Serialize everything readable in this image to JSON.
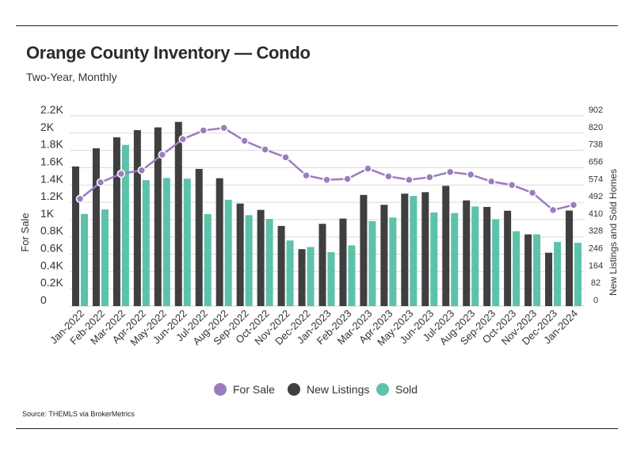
{
  "header": {
    "title": "Orange County Inventory — Condo",
    "subtitle": "Two-Year, Monthly"
  },
  "footer": {
    "source": "Source:  THEMLS via BrokerMetrics"
  },
  "colors": {
    "for_sale": "#9b7dbf",
    "new_listings": "#3f3f3f",
    "sold": "#5cc2aa",
    "grid": "#d9d9d9"
  },
  "chart_data": {
    "type": "bar",
    "title": "Orange County Inventory — Condo",
    "subtitle": "Two-Year, Monthly",
    "ylabel_left": "For Sale",
    "ylabel_right": "New Listings and Sold Homes",
    "y_left_ticks": [
      "0",
      "0.2K",
      "0.4K",
      "0.6K",
      "0.8K",
      "1K",
      "1.2K",
      "1.4K",
      "1.6K",
      "1.8K",
      "2K",
      "2.2K"
    ],
    "y_left_range": [
      0,
      2200
    ],
    "y_right_ticks": [
      "0",
      "82",
      "164",
      "246",
      "328",
      "410",
      "492",
      "574",
      "656",
      "738",
      "820",
      "902"
    ],
    "y_right_range": [
      0,
      902
    ],
    "legend_position": "bottom",
    "categories": [
      "Jan-2022",
      "Feb-2022",
      "Mar-2022",
      "Apr-2022",
      "May-2022",
      "Jun-2022",
      "Jul-2022",
      "Aug-2022",
      "Sep-2022",
      "Oct-2022",
      "Nov-2022",
      "Dec-2022",
      "Jan-2023",
      "Feb-2023",
      "Mar-2023",
      "Apr-2023",
      "May-2023",
      "Jun-2023",
      "Jul-2023",
      "Aug-2023",
      "Sep-2023",
      "Oct-2023",
      "Nov-2023",
      "Dec-2023",
      "Jan-2024"
    ],
    "series": [
      {
        "name": "For Sale",
        "type": "line",
        "axis": "left",
        "values": [
          1240,
          1430,
          1530,
          1570,
          1750,
          1930,
          2030,
          2060,
          1910,
          1810,
          1720,
          1510,
          1460,
          1470,
          1590,
          1500,
          1460,
          1490,
          1550,
          1520,
          1440,
          1400,
          1310,
          1110,
          1170
        ]
      },
      {
        "name": "New Listings",
        "type": "bar",
        "axis": "right",
        "values": [
          662,
          748,
          800,
          834,
          847,
          873,
          650,
          606,
          486,
          456,
          380,
          270,
          390,
          415,
          527,
          480,
          533,
          540,
          570,
          501,
          470,
          452,
          340,
          253,
          453
        ]
      },
      {
        "name": "Sold",
        "type": "bar",
        "axis": "right",
        "values": [
          437,
          458,
          764,
          597,
          607,
          604,
          436,
          504,
          431,
          413,
          311,
          280,
          256,
          288,
          403,
          420,
          522,
          444,
          441,
          472,
          412,
          355,
          340,
          304,
          300
        ]
      }
    ]
  }
}
